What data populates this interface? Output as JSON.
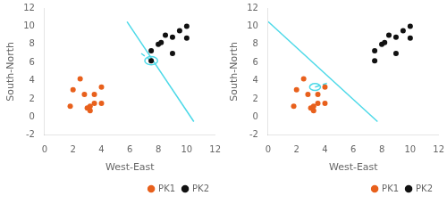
{
  "chart_data": [
    {
      "type": "scatter",
      "xlabel": "West-East",
      "ylabel": "South-North",
      "xlim": [
        0,
        12
      ],
      "ylim": [
        -2,
        12
      ],
      "xticks": [
        0,
        2,
        4,
        6,
        8,
        10,
        12
      ],
      "yticks": [
        -2,
        0,
        2,
        4,
        6,
        8,
        10,
        12
      ],
      "grid": false,
      "legend": "lower right",
      "series": [
        {
          "name": "PK1",
          "color": "#e8601c",
          "marker": "circle",
          "values": [
            [
              2.0,
              3.0
            ],
            [
              1.8,
              1.2
            ],
            [
              2.5,
              4.2
            ],
            [
              2.8,
              2.5
            ],
            [
              3.0,
              1.0
            ],
            [
              3.2,
              0.7
            ],
            [
              3.2,
              1.2
            ],
            [
              3.5,
              2.5
            ],
            [
              3.5,
              1.5
            ],
            [
              4.0,
              3.3
            ],
            [
              4.0,
              1.5
            ]
          ]
        },
        {
          "name": "PK2",
          "color": "#111111",
          "marker": "circle",
          "values": [
            [
              7.5,
              7.3
            ],
            [
              8.0,
              8.0
            ],
            [
              8.2,
              8.2
            ],
            [
              8.5,
              9.0
            ],
            [
              9.0,
              8.8
            ],
            [
              9.0,
              7.0
            ],
            [
              9.5,
              9.5
            ],
            [
              10.0,
              10.0
            ],
            [
              10.0,
              8.7
            ],
            [
              7.5,
              6.2
            ]
          ]
        },
        {
          "type": "line",
          "color": "#4dd9e8",
          "line_style": "solid",
          "values": [
            [
              5.8,
              10.5
            ],
            [
              10.5,
              -0.5
            ]
          ]
        },
        {
          "type": "line",
          "color": "#4dd9e8",
          "line_style": "dashed",
          "values": [
            [
              7.5,
              6.2
            ],
            [
              6.8,
              7.0
            ]
          ]
        },
        {
          "type": "circle",
          "color": "#4dd9e8",
          "values": [
            [
              7.5,
              6.2
            ]
          ],
          "radius": 0.45
        }
      ]
    },
    {
      "type": "scatter",
      "xlabel": "West-East",
      "ylabel": "South-North",
      "xlim": [
        0,
        12
      ],
      "ylim": [
        -2,
        12
      ],
      "xticks": [
        0,
        2,
        4,
        6,
        8,
        10,
        12
      ],
      "yticks": [
        -2,
        0,
        2,
        4,
        6,
        8,
        10,
        12
      ],
      "grid": false,
      "legend": "lower right",
      "series": [
        {
          "name": "PK1",
          "color": "#e8601c",
          "marker": "circle",
          "values": [
            [
              2.0,
              3.0
            ],
            [
              1.8,
              1.2
            ],
            [
              2.5,
              4.2
            ],
            [
              2.8,
              2.5
            ],
            [
              3.0,
              1.0
            ],
            [
              3.2,
              0.7
            ],
            [
              3.2,
              1.2
            ],
            [
              3.5,
              2.5
            ],
            [
              3.5,
              1.5
            ],
            [
              4.0,
              3.3
            ],
            [
              4.0,
              1.5
            ]
          ]
        },
        {
          "name": "PK2",
          "color": "#111111",
          "marker": "circle",
          "values": [
            [
              7.5,
              7.3
            ],
            [
              8.0,
              8.0
            ],
            [
              8.2,
              8.2
            ],
            [
              8.5,
              9.0
            ],
            [
              9.0,
              8.8
            ],
            [
              9.0,
              7.0
            ],
            [
              9.5,
              9.5
            ],
            [
              10.0,
              10.0
            ],
            [
              10.0,
              8.7
            ],
            [
              7.5,
              6.2
            ]
          ]
        },
        {
          "type": "line",
          "color": "#4dd9e8",
          "line_style": "solid",
          "values": [
            [
              0.0,
              10.5
            ],
            [
              7.7,
              -0.5
            ]
          ]
        },
        {
          "type": "line",
          "color": "#4dd9e8",
          "line_style": "dashed",
          "values": [
            [
              3.3,
              3.3
            ],
            [
              4.3,
              3.8
            ]
          ]
        },
        {
          "type": "circle",
          "color": "#4dd9e8",
          "values": [
            [
              3.3,
              3.3
            ]
          ],
          "radius": 0.38
        }
      ]
    }
  ]
}
